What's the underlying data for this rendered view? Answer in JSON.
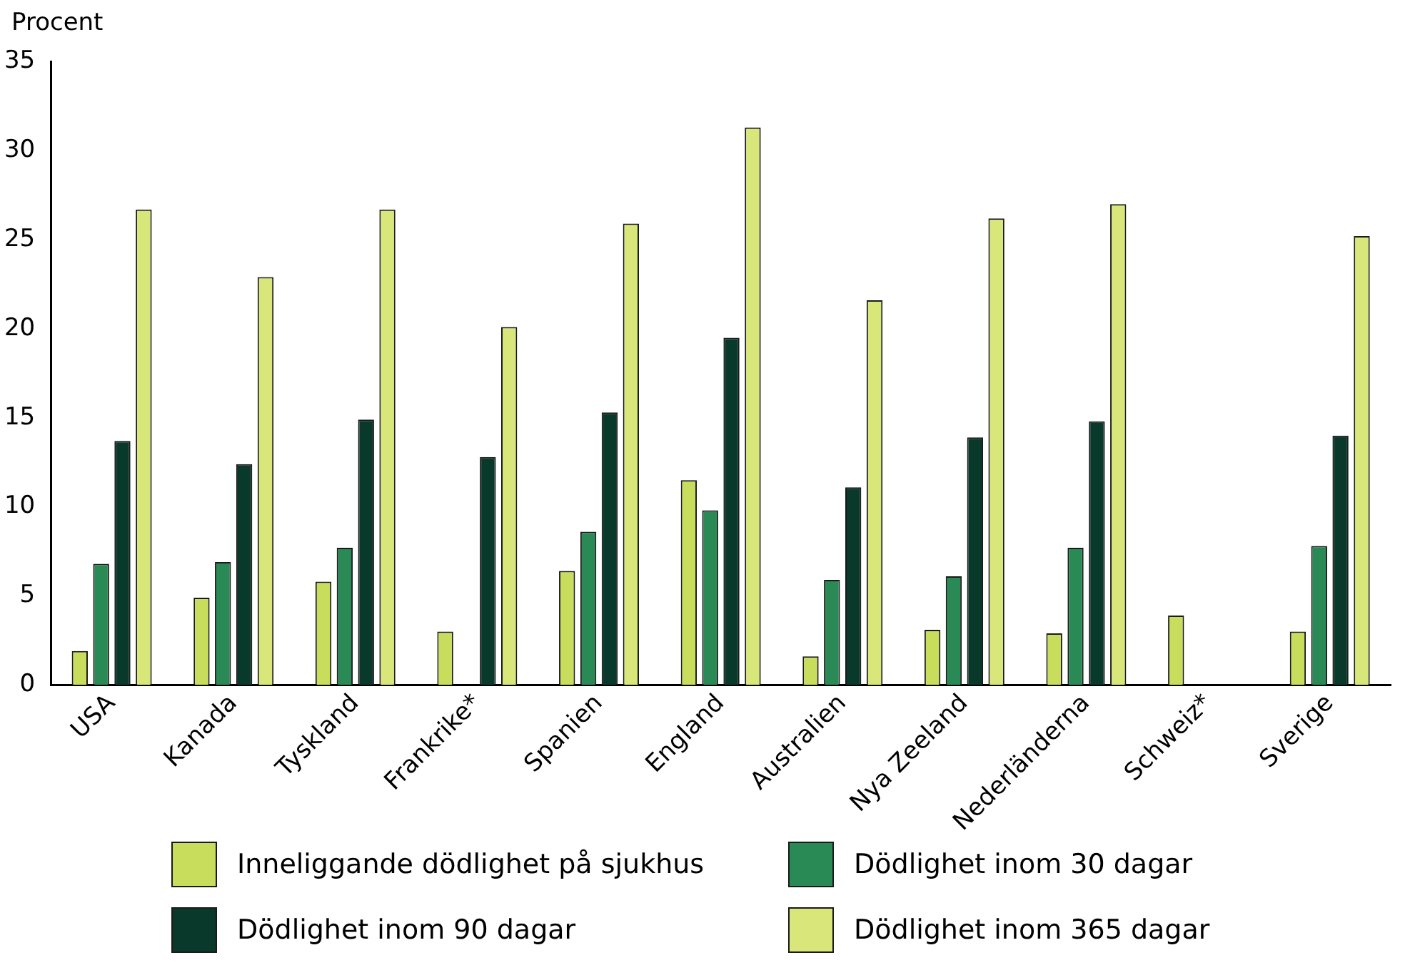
{
  "chart_data": {
    "type": "bar",
    "ylabel": "Procent",
    "categories": [
      "USA",
      "Kanada",
      "Tyskland",
      "Frankrike*",
      "Spanien",
      "England",
      "Australien",
      "Nya Zeeland",
      "Nederländerna",
      "Schweiz*",
      "Sverige"
    ],
    "series": [
      {
        "name": "Inneliggande dödlighet på sjukhus",
        "color": "#c9dd5c",
        "values": [
          1.9,
          4.9,
          5.8,
          3.0,
          6.4,
          11.5,
          1.6,
          3.1,
          2.9,
          3.9,
          3.0
        ]
      },
      {
        "name": "Dödlighet inom 30 dagar",
        "color": "#2a8a55",
        "values": [
          6.8,
          6.9,
          7.7,
          null,
          8.6,
          9.8,
          5.9,
          6.1,
          7.7,
          null,
          7.8
        ]
      },
      {
        "name": "Dödlighet inom 90 dagar",
        "color": "#08392a",
        "values": [
          13.7,
          12.4,
          14.9,
          12.8,
          15.3,
          19.5,
          11.1,
          13.9,
          14.8,
          null,
          14.0
        ]
      },
      {
        "name": "Dödlighet inom 365 dagar",
        "color": "#d8e67a",
        "values": [
          26.7,
          22.9,
          26.7,
          20.1,
          25.9,
          31.3,
          21.6,
          26.2,
          27.0,
          null,
          25.2
        ]
      }
    ],
    "ylim": [
      0,
      35
    ],
    "yticks": [
      0,
      5,
      10,
      15,
      20,
      25,
      30,
      35
    ],
    "grid": false,
    "legend": "bottom"
  }
}
